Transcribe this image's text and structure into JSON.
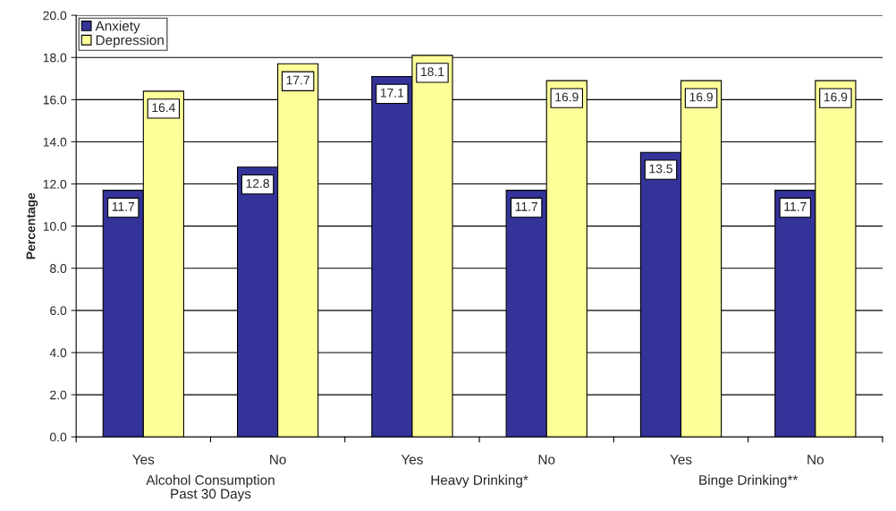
{
  "chart_data": {
    "type": "bar",
    "ylabel": "Percentage",
    "categories": [
      "Yes",
      "No",
      "Yes",
      "No",
      "Yes",
      "No"
    ],
    "series": [
      {
        "name": "Anxiety",
        "color": "#333399",
        "values": [
          11.7,
          12.8,
          17.1,
          11.7,
          13.5,
          11.7
        ]
      },
      {
        "name": "Depression",
        "color": "#ffff99",
        "values": [
          16.4,
          17.7,
          18.1,
          16.9,
          16.9,
          16.9
        ]
      }
    ],
    "ylim": [
      0,
      20
    ],
    "yticks": [
      {
        "value": 0,
        "label": "0.0"
      },
      {
        "value": 2,
        "label": "2.0"
      },
      {
        "value": 4,
        "label": "4.0"
      },
      {
        "value": 6,
        "label": "6.0"
      },
      {
        "value": 8,
        "label": "8.0"
      },
      {
        "value": 10,
        "label": "10.0"
      },
      {
        "value": 12,
        "label": "12.0"
      },
      {
        "value": 14,
        "label": "14.0"
      },
      {
        "value": 16,
        "label": "16.0"
      },
      {
        "value": 18,
        "label": "18.0"
      },
      {
        "value": 20,
        "label": "20.0"
      }
    ],
    "annotations": [
      "Alcohol Consumption\nPast 30 Days",
      "Heavy Drinking*",
      "Binge Drinking**"
    ],
    "data_labels": true,
    "grid": "y",
    "legend": "top left"
  }
}
